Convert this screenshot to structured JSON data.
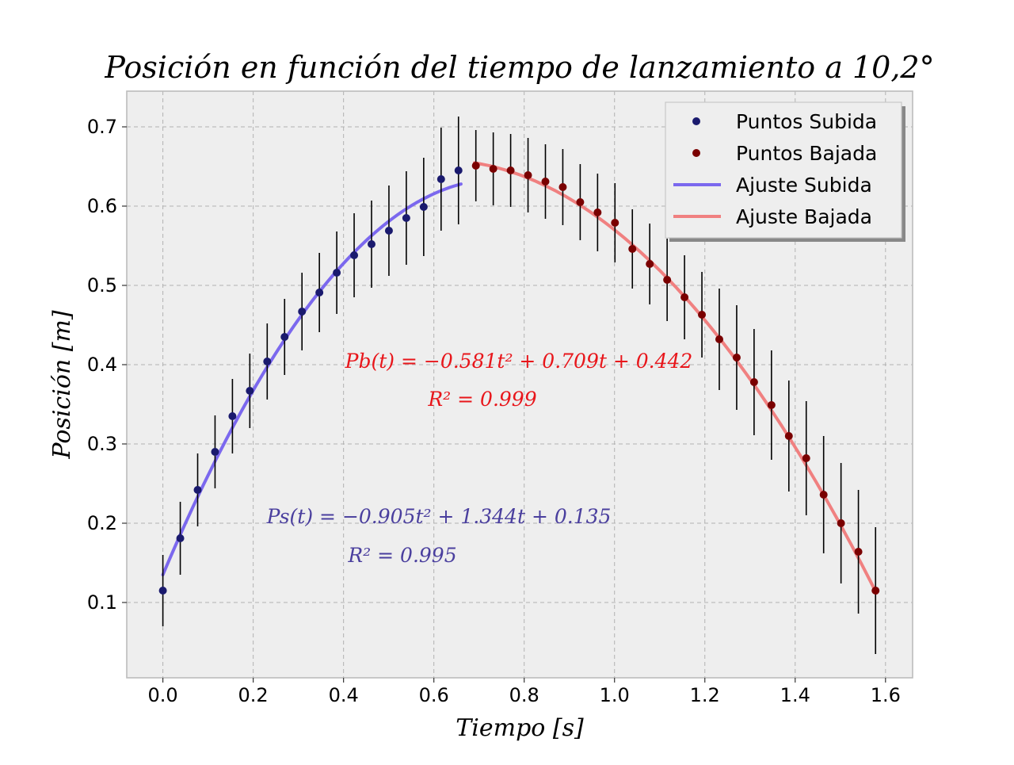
{
  "chart_data": {
    "type": "scatter",
    "title": "Posición en función del tiempo de lanzamiento a 10,2°",
    "xlabel": "Tiempo [s]",
    "ylabel": "Posición [m]",
    "xlim": [
      -0.08,
      1.66
    ],
    "ylim": [
      0.005,
      0.745
    ],
    "xticks": [
      0.0,
      0.2,
      0.4,
      0.6,
      0.8,
      1.0,
      1.2,
      1.4,
      1.6
    ],
    "xtick_labels": [
      "0.0",
      "0.2",
      "0.4",
      "0.6",
      "0.8",
      "1.0",
      "1.2",
      "1.4",
      "1.6"
    ],
    "yticks": [
      0.1,
      0.2,
      0.3,
      0.4,
      0.5,
      0.6,
      0.7
    ],
    "ytick_labels": [
      "0.1",
      "0.2",
      "0.3",
      "0.4",
      "0.5",
      "0.6",
      "0.7"
    ],
    "grid": true,
    "legend_position": "top-right",
    "series": [
      {
        "name": "Puntos Subida",
        "kind": "points",
        "color": "#1a1a6e",
        "x": [
          0.0,
          0.0385,
          0.077,
          0.1155,
          0.154,
          0.1925,
          0.231,
          0.2695,
          0.308,
          0.3465,
          0.385,
          0.4235,
          0.462,
          0.5005,
          0.539,
          0.5775,
          0.616,
          0.6545
        ],
        "y": [
          0.115,
          0.181,
          0.242,
          0.29,
          0.335,
          0.367,
          0.404,
          0.435,
          0.467,
          0.491,
          0.516,
          0.538,
          0.552,
          0.569,
          0.585,
          0.599,
          0.634,
          0.645
        ],
        "yerr": [
          0.045,
          0.046,
          0.046,
          0.046,
          0.047,
          0.047,
          0.048,
          0.048,
          0.049,
          0.05,
          0.052,
          0.053,
          0.055,
          0.057,
          0.059,
          0.062,
          0.065,
          0.068
        ]
      },
      {
        "name": "Puntos Bajada",
        "kind": "points",
        "color": "#7a0000",
        "x": [
          0.693,
          0.7315,
          0.77,
          0.8085,
          0.847,
          0.8855,
          0.924,
          0.9625,
          1.001,
          1.0395,
          1.078,
          1.1165,
          1.155,
          1.1935,
          1.232,
          1.2705,
          1.309,
          1.3475,
          1.386,
          1.4245,
          1.463,
          1.5015,
          1.54,
          1.578
        ],
        "y": [
          0.651,
          0.647,
          0.645,
          0.639,
          0.631,
          0.624,
          0.605,
          0.592,
          0.579,
          0.546,
          0.527,
          0.507,
          0.485,
          0.463,
          0.432,
          0.409,
          0.378,
          0.349,
          0.31,
          0.282,
          0.236,
          0.2,
          0.164,
          0.115
        ],
        "yerr": [
          0.045,
          0.046,
          0.046,
          0.047,
          0.047,
          0.048,
          0.048,
          0.049,
          0.05,
          0.05,
          0.051,
          0.052,
          0.053,
          0.054,
          0.064,
          0.066,
          0.067,
          0.069,
          0.07,
          0.072,
          0.074,
          0.076,
          0.078,
          0.08
        ]
      },
      {
        "name": "Ajuste Subida",
        "kind": "fit",
        "color": "#7b68ee",
        "coefficients": [
          -0.905,
          1.344,
          0.135
        ],
        "x_range": [
          0.0,
          0.66
        ]
      },
      {
        "name": "Ajuste Bajada",
        "kind": "fit",
        "color": "#f08080",
        "coefficients": [
          -0.581,
          0.709,
          0.442
        ],
        "x_range": [
          0.69,
          1.58
        ]
      }
    ],
    "annotations": [
      {
        "id": "pb-eq",
        "text": "Pb(t) = −0.581t² + 0.709t + 0.442",
        "color": "#e8161b"
      },
      {
        "id": "pb-r2",
        "text": "R² = 0.999",
        "color": "#e8161b"
      },
      {
        "id": "ps-eq",
        "text": "Ps(t) = −0.905t² + 1.344t + 0.135",
        "color": "#4a3f9e"
      },
      {
        "id": "ps-r2",
        "text": "R² = 0.995",
        "color": "#4a3f9e"
      }
    ],
    "colors": {
      "plot_background": "#eeeeee",
      "grid": "#b2b2b2",
      "error_bars": "#000000"
    }
  }
}
